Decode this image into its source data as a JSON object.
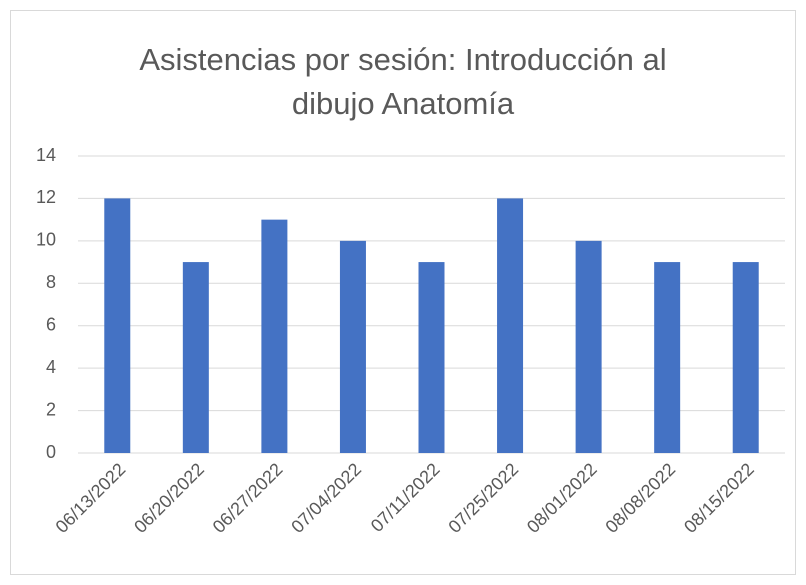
{
  "chart_data": {
    "type": "bar",
    "title": "Asistencias por sesión: Introducción al dibujo Anatomía",
    "categories": [
      "06/13/2022",
      "06/20/2022",
      "06/27/2022",
      "07/04/2022",
      "07/11/2022",
      "07/25/2022",
      "08/01/2022",
      "08/08/2022",
      "08/15/2022"
    ],
    "values": [
      12,
      9,
      11,
      10,
      9,
      12,
      10,
      9,
      9
    ],
    "color": "#4472c4",
    "ylim": [
      0,
      14
    ],
    "yticks": [
      0,
      2,
      4,
      6,
      8,
      10,
      12,
      14
    ],
    "grid": true
  }
}
